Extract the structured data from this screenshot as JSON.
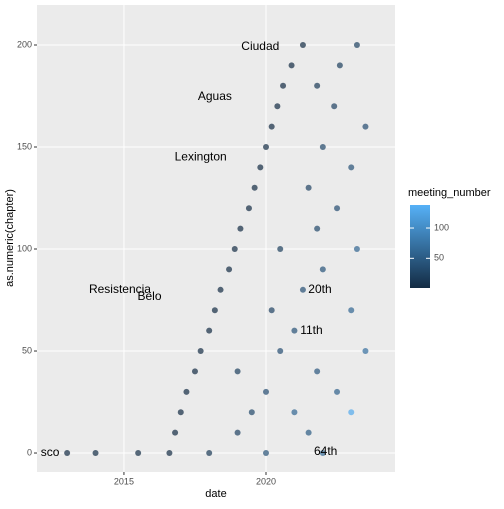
{
  "chart_data": {
    "type": "scatter",
    "x_label": "date",
    "y_label": "as.numeric(chapter)",
    "xlim": [
      2011.94,
      2024.54
    ],
    "ylim": [
      -9.3,
      219.6
    ],
    "xticks": [
      2015,
      2020
    ],
    "yticks": [
      0,
      50,
      100,
      150,
      200
    ],
    "grid": true,
    "x": [
      2013,
      2014,
      2015.5,
      2016.6,
      2018,
      2020,
      2022,
      2016.8,
      2019,
      2021.5,
      2017,
      2019.5,
      2021,
      2023,
      2017.2,
      2020,
      2022.5,
      2017.5,
      2019,
      2021.8,
      2017.7,
      2020.5,
      2023.5,
      2018,
      2021,
      2018.2,
      2020.2,
      2023,
      2018.4,
      2021.3,
      2018.7,
      2022,
      2018.9,
      2020.5,
      2023.2,
      2019.1,
      2021.8,
      2019.4,
      2022.5,
      2019.6,
      2021.5,
      2019.8,
      2023,
      2020,
      2022,
      2020.2,
      2023.5,
      2020.4,
      2022.4,
      2020.6,
      2021.8,
      2020.9,
      2022.6,
      2021.3,
      2023.2
    ],
    "values": [
      0,
      0,
      0,
      0,
      0,
      0,
      0,
      10,
      10,
      10,
      20,
      20,
      20,
      20,
      30,
      30,
      30,
      40,
      40,
      40,
      50,
      50,
      50,
      60,
      60,
      70,
      70,
      70,
      80,
      80,
      90,
      90,
      100,
      100,
      100,
      110,
      110,
      120,
      120,
      130,
      130,
      140,
      140,
      150,
      150,
      160,
      160,
      170,
      170,
      180,
      180,
      190,
      190,
      200,
      200
    ],
    "meeting_number": [
      1,
      2,
      3,
      1,
      15,
      40,
      64,
      1,
      25,
      50,
      1,
      30,
      60,
      130,
      1,
      35,
      55,
      1,
      20,
      45,
      1,
      35,
      70,
      1,
      40,
      1,
      25,
      60,
      1,
      38,
      1,
      42,
      1,
      20,
      58,
      1,
      30,
      1,
      35,
      1,
      25,
      1,
      40,
      1,
      30,
      1,
      35,
      1,
      25,
      1,
      15,
      1,
      20,
      1,
      22
    ],
    "annotations": [
      {
        "x": 2014.86,
        "y": 80,
        "text": "Resistencia"
      },
      {
        "x": 2015.9,
        "y": 76.5,
        "text": "Belo"
      },
      {
        "x": 2017.7,
        "y": 145,
        "text": "Lexington"
      },
      {
        "x": 2018.2,
        "y": 174.5,
        "text": "Aguas"
      },
      {
        "x": 2019.8,
        "y": 199,
        "text": "Ciudad"
      },
      {
        "x": 2012.4,
        "y": 0,
        "text": "sco"
      },
      {
        "x": 2022.1,
        "y": 0.5,
        "text": "64th"
      },
      {
        "x": 2021.9,
        "y": 80,
        "text": "20th"
      },
      {
        "x": 2021.6,
        "y": 60,
        "text": "11th"
      }
    ],
    "color_legend": {
      "title": "meeting_number",
      "lim": [
        1,
        138
      ],
      "ticks": [
        50,
        100
      ],
      "low": "#132B43",
      "high": "#56B1F7"
    }
  }
}
